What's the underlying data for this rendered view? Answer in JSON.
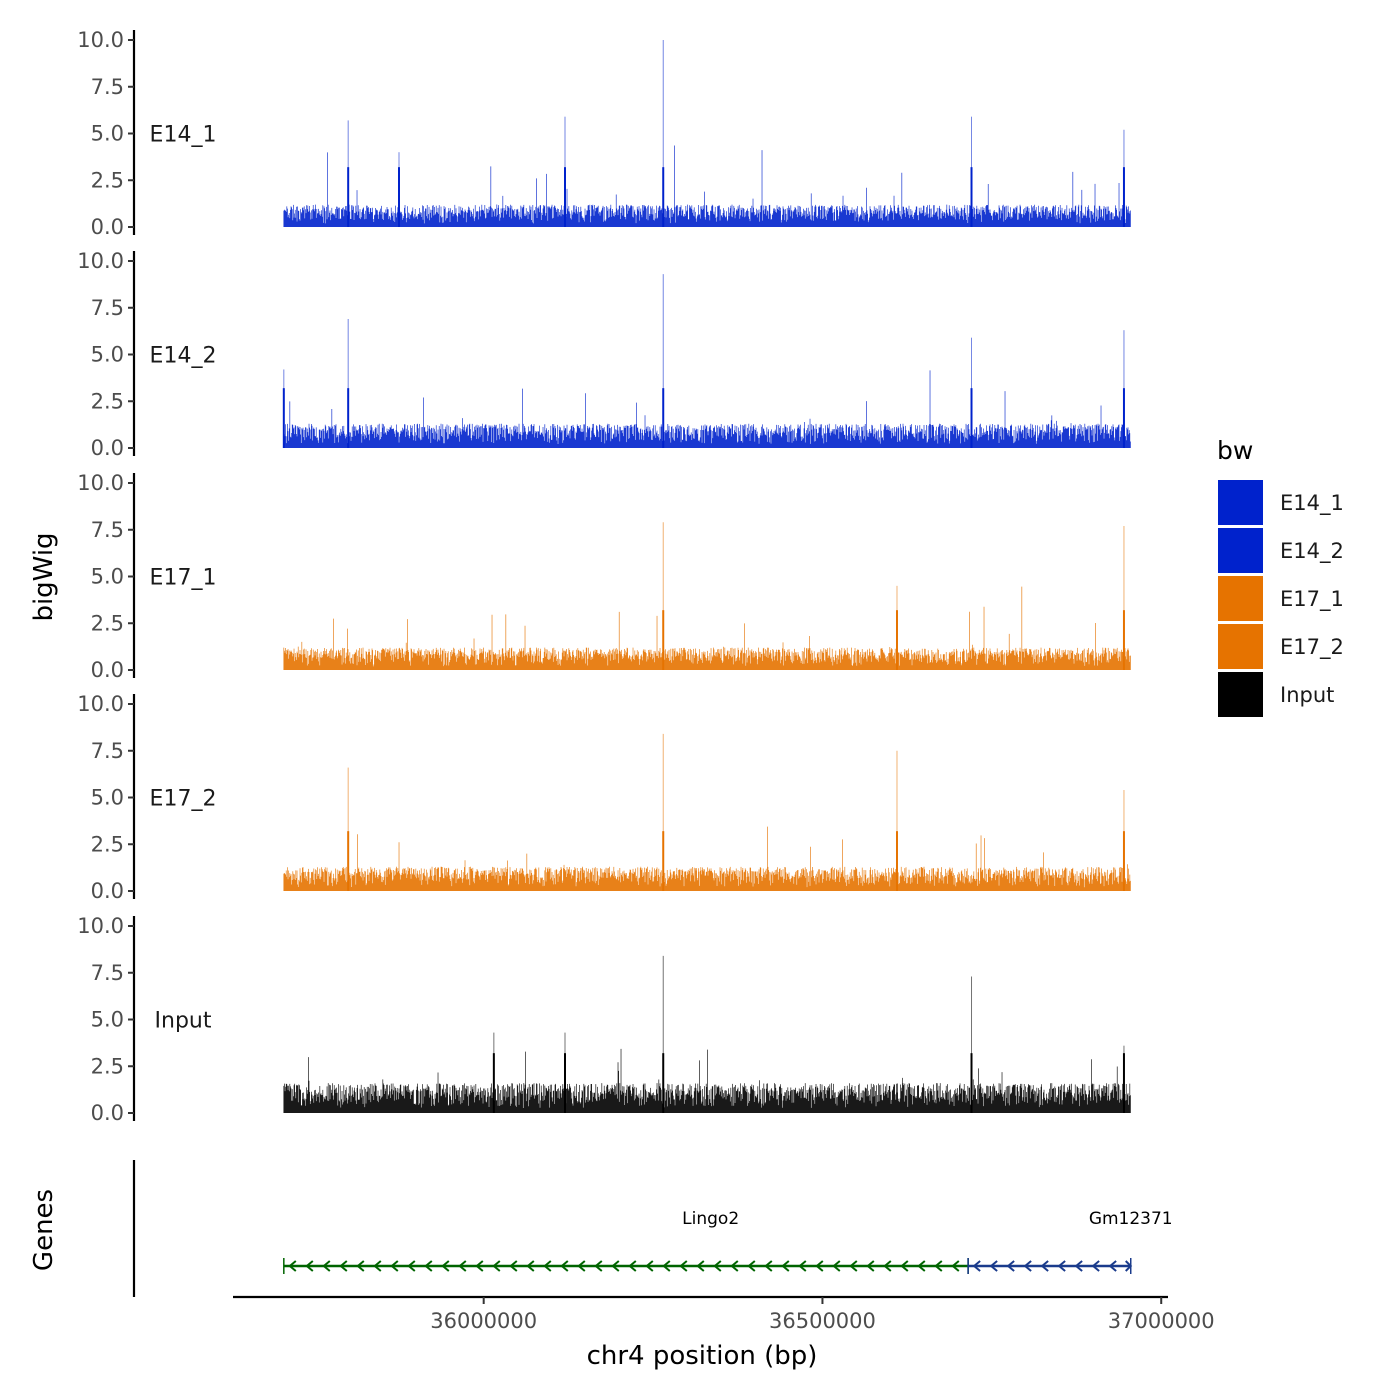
{
  "chart_data": {
    "type": "area",
    "ylabel": "bigWig",
    "xlabel": "chr4 position (bp)",
    "xlim": [
      35630000,
      37010000
    ],
    "data_range": [
      35705000,
      36955000
    ],
    "x_ticks": [
      36000000,
      36500000,
      37000000
    ],
    "x_tick_labels": [
      "36000000",
      "36500000",
      "37000000"
    ],
    "ylim": [
      0,
      10
    ],
    "y_ticks": [
      0,
      2.5,
      5,
      7.5,
      10
    ],
    "y_tick_labels": [
      "0.0",
      "2.5",
      "5.0",
      "7.5",
      "10.0"
    ],
    "legend": {
      "title": "bw",
      "position": "right",
      "entries": [
        {
          "label": "E14_1",
          "color": "#0022cc"
        },
        {
          "label": "E14_2",
          "color": "#0022cc"
        },
        {
          "label": "E17_1",
          "color": "#e67300"
        },
        {
          "label": "E17_2",
          "color": "#e67300"
        },
        {
          "label": "Input",
          "color": "#000000"
        }
      ]
    },
    "tracks": [
      {
        "name": "E14_1",
        "color": "#0022cc",
        "baseline": 1.2,
        "seed": 11,
        "peaks": [
          [
            35800000,
            5.7
          ],
          [
            35875000,
            4.0
          ],
          [
            36120000,
            5.9
          ],
          [
            36265000,
            10.0
          ],
          [
            36720000,
            5.9
          ],
          [
            36945000,
            5.2
          ]
        ]
      },
      {
        "name": "E14_2",
        "color": "#0022cc",
        "baseline": 1.3,
        "seed": 23,
        "peaks": [
          [
            35705000,
            4.2
          ],
          [
            35800000,
            6.9
          ],
          [
            36265000,
            9.3
          ],
          [
            36720000,
            5.9
          ],
          [
            36945000,
            6.3
          ]
        ]
      },
      {
        "name": "E17_1",
        "color": "#e67300",
        "baseline": 1.2,
        "seed": 37,
        "peaks": [
          [
            36265000,
            7.9
          ],
          [
            36610000,
            4.5
          ],
          [
            36945000,
            7.7
          ]
        ]
      },
      {
        "name": "E17_2",
        "color": "#e67300",
        "baseline": 1.3,
        "seed": 41,
        "peaks": [
          [
            35800000,
            6.6
          ],
          [
            36265000,
            8.4
          ],
          [
            36610000,
            7.5
          ],
          [
            36945000,
            5.4
          ]
        ]
      },
      {
        "name": "Input",
        "color": "#000000",
        "baseline": 1.6,
        "seed": 53,
        "peaks": [
          [
            36015000,
            4.3
          ],
          [
            36120000,
            4.3
          ],
          [
            36265000,
            8.4
          ],
          [
            36720000,
            7.3
          ],
          [
            36945000,
            3.6
          ]
        ]
      }
    ],
    "genes_track": {
      "label": "Genes",
      "genes": [
        {
          "name": "Lingo2",
          "start": 35705000,
          "end": 36715000,
          "strand": "-",
          "color": "#006400",
          "label_x": 36335000
        },
        {
          "name": "Gm12371",
          "start": 36715000,
          "end": 36955000,
          "strand": "-",
          "color": "#1a3b8c",
          "label_x": 36955000
        }
      ]
    }
  }
}
